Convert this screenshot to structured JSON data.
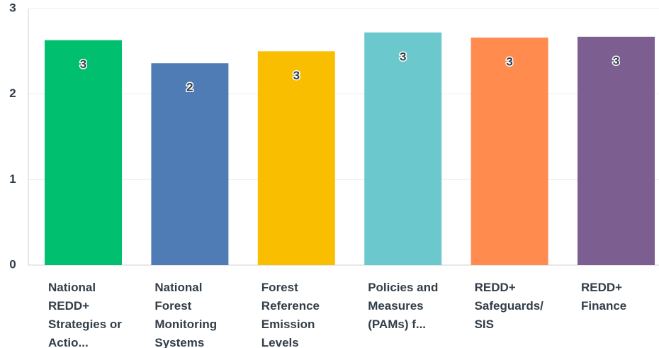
{
  "chart_data": {
    "type": "bar",
    "categories": [
      "National REDD+ Strategies or Actio...",
      "National Forest Monitoring Systems",
      "Forest Reference Emission Levels",
      "Policies and Measures (PAMs) f...",
      "REDD+ Safeguards/ SIS",
      "REDD+ Finance"
    ],
    "values": [
      2.63,
      2.36,
      2.5,
      2.72,
      2.66,
      2.67
    ],
    "value_labels": [
      "3",
      "2",
      "3",
      "3",
      "3",
      "3"
    ],
    "colors": [
      "#00bf6f",
      "#507cb6",
      "#f9be00",
      "#6bc8cd",
      "#ff8b4f",
      "#7d5e90"
    ],
    "ylim": [
      0,
      3
    ],
    "yticks": [
      0,
      1,
      2,
      3
    ],
    "grid": true
  }
}
